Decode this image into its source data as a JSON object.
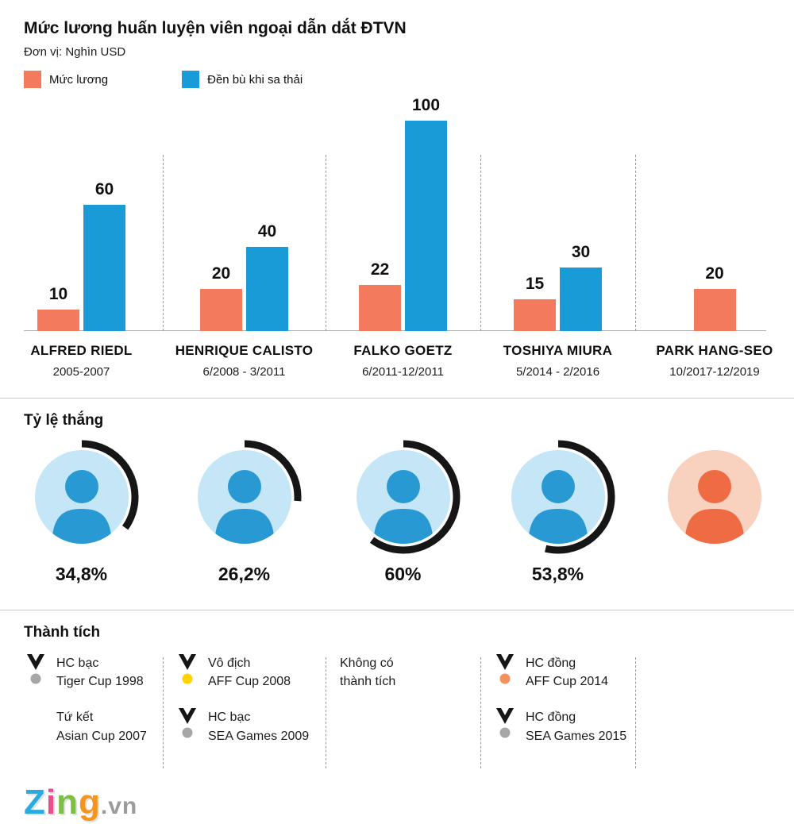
{
  "header": {
    "title": "Mức lương huấn luyện viên ngoại dẫn dắt ĐTVN",
    "subtitle": "Đơn vị: Nghìn USD"
  },
  "legend": [
    {
      "label": "Mức lương",
      "color": "#F47A5E"
    },
    {
      "label": "Đền bù khi sa thải",
      "color": "#189BD7"
    }
  ],
  "chart_data": {
    "type": "bar",
    "title": "Mức lương huấn luyện viên ngoại dẫn dắt ĐTVN",
    "unit": "Nghìn USD",
    "categories": [
      "ALFRED RIEDL",
      "HENRIQUE CALISTO",
      "FALKO GOETZ",
      "TOSHIYA MIURA",
      "PARK HANG-SEO"
    ],
    "periods": [
      "2005-2007",
      "6/2008 - 3/2011",
      "6/2011-12/2011",
      "5/2014 - 2/2016",
      "10/2017-12/2019"
    ],
    "series": [
      {
        "name": "Mức lương",
        "color": "#F47A5E",
        "values": [
          10,
          20,
          22,
          15,
          20
        ]
      },
      {
        "name": "Đền bù khi sa thải",
        "color": "#189BD7",
        "values": [
          60,
          40,
          100,
          30,
          null
        ]
      }
    ],
    "ylim": [
      0,
      100
    ],
    "grid": false,
    "legend_position": "top-left"
  },
  "win_rate": {
    "heading": "Tỷ lệ thắng",
    "items": [
      {
        "coach": "Alfred Riedl",
        "percent": 34.8,
        "percent_label": "34,8%",
        "tint": "blue"
      },
      {
        "coach": "Henrique Calisto",
        "percent": 26.2,
        "percent_label": "26,2%",
        "tint": "blue"
      },
      {
        "coach": "Falko Goetz",
        "percent": 60,
        "percent_label": "60%",
        "tint": "blue"
      },
      {
        "coach": "Toshiya Miura",
        "percent": 53.8,
        "percent_label": "53,8%",
        "tint": "blue"
      },
      {
        "coach": "Park Hang-seo",
        "percent": null,
        "percent_label": "",
        "tint": "orange"
      }
    ]
  },
  "achievements": {
    "heading": "Thành tích",
    "columns": [
      {
        "items": [
          {
            "icon": "medal",
            "medal_color": "#A7A7A7",
            "line1": "HC bạc",
            "line2": "Tiger Cup 1998"
          },
          {
            "icon": "spacer",
            "medal_color": "",
            "line1": "Tứ kết",
            "line2": "Asian Cup 2007"
          }
        ]
      },
      {
        "items": [
          {
            "icon": "medal",
            "medal_color": "#FFD400",
            "line1": "Vô địch",
            "line2": "AFF Cup 2008"
          },
          {
            "icon": "medal",
            "medal_color": "#A7A7A7",
            "line1": "HC bạc",
            "line2": "SEA Games 2009"
          }
        ]
      },
      {
        "items": [
          {
            "icon": "none",
            "medal_color": "",
            "line1": "Không có",
            "line2": "thành tích"
          }
        ]
      },
      {
        "items": [
          {
            "icon": "medal",
            "medal_color": "#F4915C",
            "line1": "HC đồng",
            "line2": "AFF Cup 2014"
          },
          {
            "icon": "medal",
            "medal_color": "#A7A7A7",
            "line1": "HC đồng",
            "line2": "SEA Games 2015"
          }
        ]
      },
      {
        "items": []
      }
    ]
  },
  "footer": {
    "logo_letters": [
      {
        "char": "Z",
        "color": "#29ABE2"
      },
      {
        "char": "i",
        "color": "#EC4D8B"
      },
      {
        "char": "n",
        "color": "#7AC143"
      },
      {
        "char": "g",
        "color": "#F7941E"
      }
    ],
    "logo_suffix": ".vn"
  }
}
